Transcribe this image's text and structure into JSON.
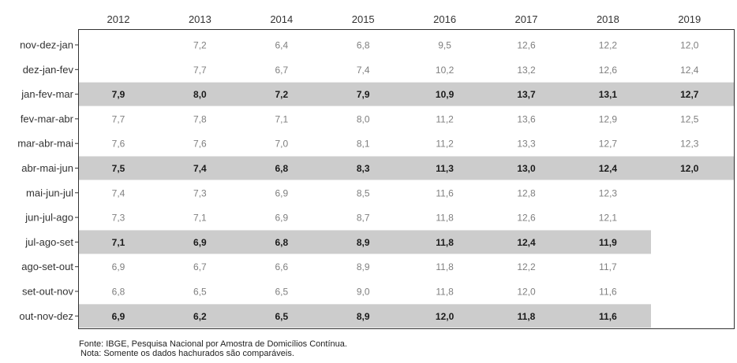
{
  "chart_data": {
    "type": "table",
    "columns": [
      "2012",
      "2013",
      "2014",
      "2015",
      "2016",
      "2017",
      "2018",
      "2019"
    ],
    "rows": [
      {
        "label": "nov-dez-jan",
        "highlight": false,
        "values": [
          "",
          "7,2",
          "6,4",
          "6,8",
          "9,5",
          "12,6",
          "12,2",
          "12,0"
        ]
      },
      {
        "label": "dez-jan-fev",
        "highlight": false,
        "values": [
          "",
          "7,7",
          "6,7",
          "7,4",
          "10,2",
          "13,2",
          "12,6",
          "12,4"
        ]
      },
      {
        "label": "jan-fev-mar",
        "highlight": true,
        "values": [
          "7,9",
          "8,0",
          "7,2",
          "7,9",
          "10,9",
          "13,7",
          "13,1",
          "12,7"
        ]
      },
      {
        "label": "fev-mar-abr",
        "highlight": false,
        "values": [
          "7,7",
          "7,8",
          "7,1",
          "8,0",
          "11,2",
          "13,6",
          "12,9",
          "12,5"
        ]
      },
      {
        "label": "mar-abr-mai",
        "highlight": false,
        "values": [
          "7,6",
          "7,6",
          "7,0",
          "8,1",
          "11,2",
          "13,3",
          "12,7",
          "12,3"
        ]
      },
      {
        "label": "abr-mai-jun",
        "highlight": true,
        "values": [
          "7,5",
          "7,4",
          "6,8",
          "8,3",
          "11,3",
          "13,0",
          "12,4",
          "12,0"
        ]
      },
      {
        "label": "mai-jun-jul",
        "highlight": false,
        "values": [
          "7,4",
          "7,3",
          "6,9",
          "8,5",
          "11,6",
          "12,8",
          "12,3",
          ""
        ]
      },
      {
        "label": "jun-jul-ago",
        "highlight": false,
        "values": [
          "7,3",
          "7,1",
          "6,9",
          "8,7",
          "11,8",
          "12,6",
          "12,1",
          ""
        ]
      },
      {
        "label": "jul-ago-set",
        "highlight": true,
        "values": [
          "7,1",
          "6,9",
          "6,8",
          "8,9",
          "11,8",
          "12,4",
          "11,9",
          ""
        ]
      },
      {
        "label": "ago-set-out",
        "highlight": false,
        "values": [
          "6,9",
          "6,7",
          "6,6",
          "8,9",
          "11,8",
          "12,2",
          "11,7",
          ""
        ]
      },
      {
        "label": "set-out-nov",
        "highlight": false,
        "values": [
          "6,8",
          "6,5",
          "6,5",
          "9,0",
          "11,8",
          "12,0",
          "11,6",
          ""
        ]
      },
      {
        "label": "out-nov-dez",
        "highlight": true,
        "values": [
          "6,9",
          "6,2",
          "6,5",
          "8,9",
          "12,0",
          "11,8",
          "11,6",
          ""
        ]
      }
    ],
    "highlight_color": "#cccccc",
    "source": "Fonte: IBGE, Pesquisa Nacional por Amostra de Domicílios Contínua.",
    "note": "Nota: Somente os dados hachurados são comparáveis."
  }
}
